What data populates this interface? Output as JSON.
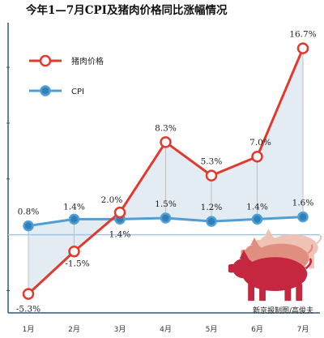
{
  "chart_data": {
    "type": "line",
    "title": "今年1—7月CPI及猪肉价格同比涨幅情况",
    "categories": [
      "1月",
      "2月",
      "3月",
      "4月",
      "5月",
      "6月",
      "7月"
    ],
    "series": [
      {
        "name": "猪肉价格",
        "values": [
          -5.3,
          -1.5,
          2.0,
          8.3,
          5.3,
          7.0,
          16.7
        ],
        "labels": [
          "-5.3%",
          "-1.5%",
          "2.0%",
          "8.3%",
          "5.3%",
          "7.0%",
          "16.7%"
        ],
        "color": "#e03a2f"
      },
      {
        "name": "CPI",
        "values": [
          0.8,
          1.4,
          1.4,
          1.5,
          1.2,
          1.4,
          1.6
        ],
        "labels": [
          "0.8%",
          "1.4%",
          "1.4%",
          "1.5%",
          "1.2%",
          "1.4%",
          "1.6%"
        ],
        "color": "#4f9fd4"
      }
    ],
    "ylim": [
      -7,
      19
    ],
    "legend": "top-left",
    "credit": "新京报制图/高俊夫",
    "colors": {
      "fill": "#e4ecf3",
      "grid": "#2a5b7a",
      "zero_line": "#9ec8e3",
      "drop_line": "#bfbfbf",
      "pig_front": "#c4273f",
      "pig_middle": "#e08e80",
      "pig_back": "#eec3b5"
    }
  }
}
